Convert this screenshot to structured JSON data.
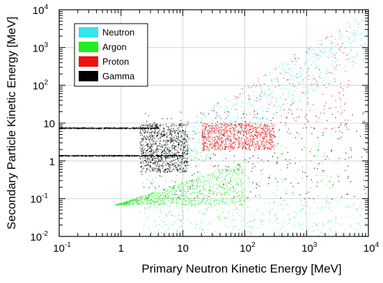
{
  "chart_data": {
    "type": "scatter",
    "title": "",
    "xlabel": "Primary Neutron Kinetic Energy [MeV]",
    "ylabel": "Secondary Particle Kinetic Energy [MeV]",
    "xscale": "log",
    "yscale": "log",
    "xlim": [
      0.1,
      10000
    ],
    "ylim": [
      0.01,
      10000
    ],
    "grid": true,
    "legend_position": "top-left",
    "x_ticks": [
      {
        "value": 0.1,
        "base": "10",
        "exp": "-1"
      },
      {
        "value": 1,
        "base": "1",
        "exp": ""
      },
      {
        "value": 10,
        "base": "10",
        "exp": ""
      },
      {
        "value": 100,
        "base": "10",
        "exp": "2"
      },
      {
        "value": 1000,
        "base": "10",
        "exp": "3"
      },
      {
        "value": 10000,
        "base": "10",
        "exp": "4"
      }
    ],
    "y_ticks": [
      {
        "value": 0.01,
        "base": "10",
        "exp": "-2"
      },
      {
        "value": 0.1,
        "base": "10",
        "exp": "-1"
      },
      {
        "value": 1,
        "base": "1",
        "exp": ""
      },
      {
        "value": 10,
        "base": "10",
        "exp": ""
      },
      {
        "value": 100,
        "base": "10",
        "exp": "2"
      },
      {
        "value": 1000,
        "base": "10",
        "exp": "3"
      },
      {
        "value": 10000,
        "base": "10",
        "exp": "4"
      }
    ],
    "series": [
      {
        "name": "Neutron",
        "color": "#33e6ee",
        "regions": [
          {
            "x": [
              10,
              10000
            ],
            "y": [
              0.5,
              10000
            ],
            "shape": "below-diagonal-band",
            "density": 0.6
          },
          {
            "x": [
              2,
              10000
            ],
            "y": [
              0.01,
              0.1
            ],
            "density": 0.25
          }
        ]
      },
      {
        "name": "Argon",
        "color": "#22ee22",
        "regions": [
          {
            "x": [
              0.8,
              100
            ],
            "y": [
              0.07,
              1
            ],
            "shape": "wedge",
            "density": 0.9
          },
          {
            "x": [
              2,
              3000
            ],
            "y": [
              0.01,
              3
            ],
            "density": 0.35
          }
        ]
      },
      {
        "name": "Proton",
        "color": "#ee1111",
        "regions": [
          {
            "x": [
              20,
              300
            ],
            "y": [
              2,
              10
            ],
            "density": 0.9
          },
          {
            "x": [
              30,
              5000
            ],
            "y": [
              5,
              3000
            ],
            "density": 0.35
          }
        ]
      },
      {
        "name": "Gamma",
        "color": "#000000",
        "regions": [
          {
            "x": [
              2,
              12
            ],
            "y": [
              0.5,
              10
            ],
            "density": 0.95
          },
          {
            "x": [
              2,
              10000
            ],
            "y": [
              0.1,
              20
            ],
            "density": 0.35
          },
          {
            "x": [
              0.1,
              10
            ],
            "y": [
              1.4,
              1.4
            ],
            "shape": "line",
            "density": 0.5
          },
          {
            "x": [
              0.1,
              4
            ],
            "y": [
              7.5,
              7.5
            ],
            "shape": "line",
            "density": 0.5
          }
        ]
      }
    ]
  }
}
